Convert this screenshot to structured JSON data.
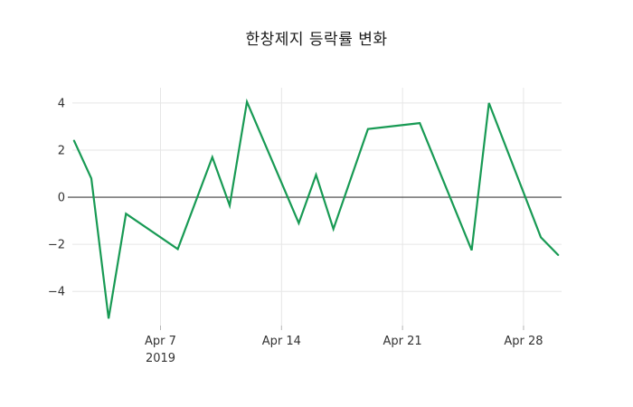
{
  "title": "한창제지 등락률 변화",
  "colors": {
    "line": "#189a54",
    "grid": "#e6e6e6",
    "zero_line": "#3d3d3d",
    "tick_mark": "#b3b3b3",
    "tick_text": "#333333",
    "title_text": "#1a1a1a",
    "background": "#ffffff"
  },
  "chart_data": {
    "type": "line",
    "title": "한창제지 등락률 변화",
    "x": [
      "2019-04-02",
      "2019-04-03",
      "2019-04-04",
      "2019-04-05",
      "2019-04-08",
      "2019-04-10",
      "2019-04-11",
      "2019-04-12",
      "2019-04-15",
      "2019-04-16",
      "2019-04-17",
      "2019-04-19",
      "2019-04-22",
      "2019-04-25",
      "2019-04-26",
      "2019-04-29",
      "2019-04-30"
    ],
    "y": [
      2.4,
      0.8,
      -5.15,
      -0.7,
      -2.2,
      1.7,
      -0.35,
      4.05,
      -1.1,
      0.95,
      -1.35,
      2.9,
      3.15,
      -2.25,
      4.0,
      -1.7,
      -2.45
    ],
    "xticks": [
      {
        "day": 7,
        "label": "Apr 7",
        "sublabel": "2019"
      },
      {
        "day": 14,
        "label": "Apr 14",
        "sublabel": ""
      },
      {
        "day": 21,
        "label": "Apr 21",
        "sublabel": ""
      },
      {
        "day": 28,
        "label": "Apr 28",
        "sublabel": ""
      }
    ],
    "yticks": [
      4,
      2,
      0,
      -2,
      -4
    ],
    "xlim_days": [
      1.9,
      30.2
    ],
    "ylim": [
      -5.45,
      4.65
    ],
    "grid": true,
    "zero_line": true,
    "legend": false,
    "xlabel": "",
    "ylabel": ""
  }
}
